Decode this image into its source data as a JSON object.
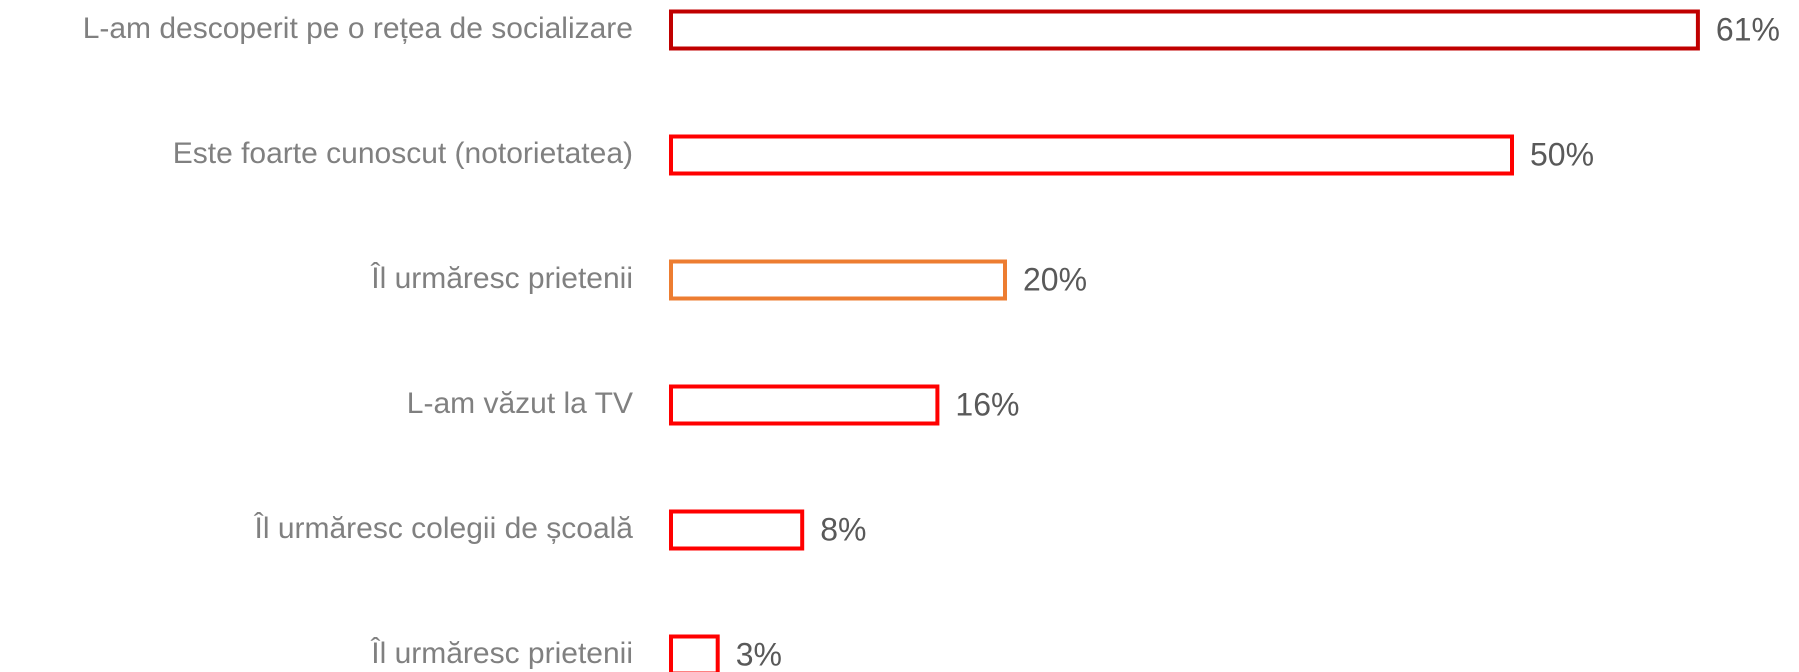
{
  "chart_data": {
    "type": "bar",
    "orientation": "horizontal",
    "categories": [
      "L-am descoperit pe o rețea de socializare",
      "Este foarte cunoscut (notorietatea)",
      "Îl urmăresc prietenii",
      "L-am văzut la TV",
      "Îl urmăresc colegii de școală",
      "Îl urmăresc prietenii"
    ],
    "values": [
      61,
      50,
      20,
      16,
      8,
      3
    ],
    "value_labels": [
      "61%",
      "50%",
      "20%",
      "16%",
      "8%",
      "3%"
    ],
    "colors": [
      "#c00000",
      "#ff0000",
      "#ed7d31",
      "#ff0000",
      "#ff0000",
      "#ff0000"
    ],
    "fill": "none"
  }
}
